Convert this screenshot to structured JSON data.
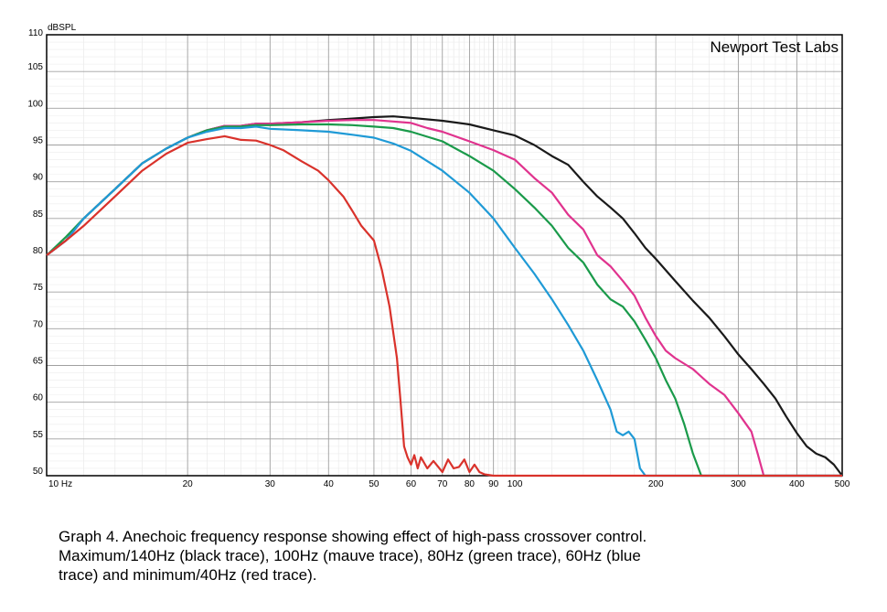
{
  "chart_data": {
    "type": "line",
    "ylabel": "dBSPL",
    "watermark": "Newport Test Labs",
    "x_scale": "log",
    "xlim": [
      10,
      500
    ],
    "ylim": [
      50,
      110
    ],
    "grid": true,
    "x_ticks": [
      {
        "v": 10,
        "label": "10 Hz"
      },
      {
        "v": 20,
        "label": "20"
      },
      {
        "v": 30,
        "label": "30"
      },
      {
        "v": 40,
        "label": "40"
      },
      {
        "v": 50,
        "label": "50"
      },
      {
        "v": 60,
        "label": "60"
      },
      {
        "v": 70,
        "label": "70"
      },
      {
        "v": 80,
        "label": "80"
      },
      {
        "v": 90,
        "label": "90"
      },
      {
        "v": 100,
        "label": "100"
      },
      {
        "v": 200,
        "label": "200"
      },
      {
        "v": 300,
        "label": "300"
      },
      {
        "v": 400,
        "label": "400"
      },
      {
        "v": 500,
        "label": "500"
      }
    ],
    "y_ticks": [
      {
        "v": 110,
        "label": "110"
      },
      {
        "v": 105,
        "label": "105"
      },
      {
        "v": 100,
        "label": "100"
      },
      {
        "v": 95,
        "label": "95"
      },
      {
        "v": 90,
        "label": "90"
      },
      {
        "v": 85,
        "label": "85"
      },
      {
        "v": 80,
        "label": "80"
      },
      {
        "v": 75,
        "label": "75"
      },
      {
        "v": 70,
        "label": "70"
      },
      {
        "v": 65,
        "label": "65"
      },
      {
        "v": 60,
        "label": "60"
      },
      {
        "v": 55,
        "label": "55"
      },
      {
        "v": 50,
        "label": "50"
      }
    ],
    "series": [
      {
        "color": "#1a1a1a",
        "points": [
          [
            10,
            80
          ],
          [
            11,
            82
          ],
          [
            12,
            85
          ],
          [
            14,
            89
          ],
          [
            16,
            92.5
          ],
          [
            18,
            94.5
          ],
          [
            20,
            96
          ],
          [
            22,
            97
          ],
          [
            24,
            97.6
          ],
          [
            26,
            97.6
          ],
          [
            28,
            97.9
          ],
          [
            30,
            97.9
          ],
          [
            35,
            98.1
          ],
          [
            40,
            98.4
          ],
          [
            45,
            98.6
          ],
          [
            50,
            98.8
          ],
          [
            55,
            98.9
          ],
          [
            60,
            98.7
          ],
          [
            70,
            98.3
          ],
          [
            80,
            97.8
          ],
          [
            90,
            97
          ],
          [
            100,
            96.3
          ],
          [
            110,
            95
          ],
          [
            120,
            93.5
          ],
          [
            130,
            92.3
          ],
          [
            140,
            90
          ],
          [
            150,
            88
          ],
          [
            160,
            86.5
          ],
          [
            170,
            85
          ],
          [
            180,
            83
          ],
          [
            190,
            81
          ],
          [
            200,
            79.5
          ],
          [
            220,
            76.5
          ],
          [
            240,
            73.8
          ],
          [
            260,
            71.5
          ],
          [
            280,
            69
          ],
          [
            300,
            66.5
          ],
          [
            320,
            64.5
          ],
          [
            340,
            62.5
          ],
          [
            360,
            60.5
          ],
          [
            380,
            58
          ],
          [
            400,
            55.8
          ],
          [
            420,
            54
          ],
          [
            440,
            53
          ],
          [
            460,
            52.5
          ],
          [
            480,
            51.5
          ],
          [
            500,
            50
          ]
        ]
      },
      {
        "color": "#e0338e",
        "points": [
          [
            10,
            80
          ],
          [
            11,
            82
          ],
          [
            12,
            85
          ],
          [
            14,
            89
          ],
          [
            16,
            92.5
          ],
          [
            18,
            94.5
          ],
          [
            20,
            96
          ],
          [
            22,
            97
          ],
          [
            24,
            97.6
          ],
          [
            26,
            97.6
          ],
          [
            28,
            97.9
          ],
          [
            30,
            97.9
          ],
          [
            35,
            98.1
          ],
          [
            40,
            98.3
          ],
          [
            45,
            98.4
          ],
          [
            50,
            98.4
          ],
          [
            55,
            98.2
          ],
          [
            60,
            98
          ],
          [
            65,
            97.3
          ],
          [
            70,
            96.8
          ],
          [
            80,
            95.5
          ],
          [
            90,
            94.3
          ],
          [
            100,
            93
          ],
          [
            110,
            90.5
          ],
          [
            120,
            88.5
          ],
          [
            130,
            85.5
          ],
          [
            140,
            83.5
          ],
          [
            150,
            80
          ],
          [
            160,
            78.5
          ],
          [
            170,
            76.5
          ],
          [
            180,
            74.5
          ],
          [
            190,
            71.5
          ],
          [
            200,
            69
          ],
          [
            210,
            67
          ],
          [
            220,
            66
          ],
          [
            240,
            64.5
          ],
          [
            260,
            62.5
          ],
          [
            280,
            61
          ],
          [
            300,
            58.5
          ],
          [
            320,
            56
          ],
          [
            330,
            53
          ],
          [
            340,
            50
          ],
          [
            500,
            50
          ]
        ]
      },
      {
        "color": "#1a9a4a",
        "points": [
          [
            10,
            80
          ],
          [
            11,
            82.5
          ],
          [
            12,
            85
          ],
          [
            14,
            89
          ],
          [
            16,
            92.5
          ],
          [
            18,
            94.5
          ],
          [
            20,
            96
          ],
          [
            22,
            97
          ],
          [
            24,
            97.5
          ],
          [
            26,
            97.5
          ],
          [
            28,
            97.7
          ],
          [
            30,
            97.7
          ],
          [
            35,
            97.8
          ],
          [
            40,
            97.8
          ],
          [
            45,
            97.7
          ],
          [
            50,
            97.5
          ],
          [
            55,
            97.3
          ],
          [
            60,
            96.8
          ],
          [
            70,
            95.5
          ],
          [
            80,
            93.5
          ],
          [
            90,
            91.5
          ],
          [
            100,
            89
          ],
          [
            110,
            86.5
          ],
          [
            120,
            84
          ],
          [
            130,
            81
          ],
          [
            140,
            79
          ],
          [
            150,
            76
          ],
          [
            160,
            74
          ],
          [
            170,
            73
          ],
          [
            180,
            71
          ],
          [
            190,
            68.5
          ],
          [
            200,
            66
          ],
          [
            210,
            63
          ],
          [
            220,
            60.5
          ],
          [
            230,
            57
          ],
          [
            240,
            53
          ],
          [
            250,
            50
          ],
          [
            500,
            50
          ]
        ]
      },
      {
        "color": "#1f9ad6",
        "points": [
          [
            10,
            80
          ],
          [
            11,
            82
          ],
          [
            12,
            85
          ],
          [
            14,
            89
          ],
          [
            16,
            92.5
          ],
          [
            18,
            94.5
          ],
          [
            20,
            96
          ],
          [
            22,
            96.8
          ],
          [
            24,
            97.3
          ],
          [
            26,
            97.3
          ],
          [
            28,
            97.5
          ],
          [
            30,
            97.2
          ],
          [
            35,
            97
          ],
          [
            40,
            96.8
          ],
          [
            45,
            96.4
          ],
          [
            50,
            96
          ],
          [
            55,
            95.2
          ],
          [
            60,
            94.2
          ],
          [
            70,
            91.5
          ],
          [
            80,
            88.5
          ],
          [
            90,
            85
          ],
          [
            100,
            81
          ],
          [
            110,
            77.5
          ],
          [
            120,
            74
          ],
          [
            130,
            70.5
          ],
          [
            140,
            67
          ],
          [
            150,
            63
          ],
          [
            160,
            59
          ],
          [
            165,
            56
          ],
          [
            170,
            55.5
          ],
          [
            175,
            56
          ],
          [
            180,
            55
          ],
          [
            185,
            51
          ],
          [
            190,
            50
          ],
          [
            500,
            50
          ]
        ]
      },
      {
        "color": "#d9322b",
        "points": [
          [
            10,
            80
          ],
          [
            11,
            82
          ],
          [
            12,
            84
          ],
          [
            14,
            88
          ],
          [
            16,
            91.5
          ],
          [
            18,
            93.8
          ],
          [
            20,
            95.3
          ],
          [
            22,
            95.8
          ],
          [
            24,
            96.2
          ],
          [
            26,
            95.7
          ],
          [
            28,
            95.6
          ],
          [
            30,
            95
          ],
          [
            32,
            94.3
          ],
          [
            35,
            92.8
          ],
          [
            38,
            91.5
          ],
          [
            40,
            90.2
          ],
          [
            43,
            88
          ],
          [
            45,
            86
          ],
          [
            47,
            84
          ],
          [
            50,
            82
          ],
          [
            52,
            78
          ],
          [
            54,
            73
          ],
          [
            56,
            66
          ],
          [
            57,
            60
          ],
          [
            58,
            54
          ],
          [
            59,
            52.5
          ],
          [
            60,
            51.5
          ],
          [
            61,
            52.8
          ],
          [
            62,
            51
          ],
          [
            63,
            52.5
          ],
          [
            65,
            51
          ],
          [
            67,
            52
          ],
          [
            70,
            50.5
          ],
          [
            72,
            52.2
          ],
          [
            74,
            51
          ],
          [
            76,
            51.2
          ],
          [
            78,
            52.2
          ],
          [
            80,
            50.5
          ],
          [
            82,
            51.5
          ],
          [
            84,
            50.5
          ],
          [
            86,
            50.2
          ],
          [
            90,
            50
          ],
          [
            500,
            50
          ]
        ]
      }
    ]
  },
  "caption": {
    "lines": [
      "Graph 4. Anechoic frequency response showing effect of high-pass crossover control.",
      "Maximum/140Hz (black trace), 100Hz (mauve trace), 80Hz (green trace), 60Hz (blue",
      "trace) and minimum/40Hz (red trace)."
    ]
  }
}
